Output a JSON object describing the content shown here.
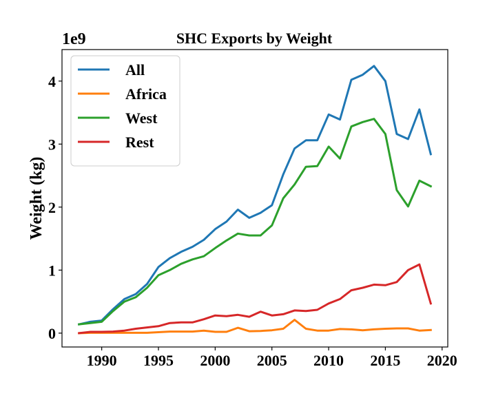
{
  "chart_data": {
    "type": "line",
    "title": "SHC Exports by Weight",
    "xlabel": "",
    "ylabel": "Weight (kg)",
    "y_offset_label": "1e9",
    "xlim": [
      1986.5,
      2020.5
    ],
    "ylim": [
      -0.22,
      4.5
    ],
    "xticks": [
      1990,
      1995,
      2000,
      2005,
      2010,
      2015,
      2020
    ],
    "yticks": [
      0,
      1,
      2,
      3,
      4
    ],
    "grid": false,
    "legend_position": "upper-left",
    "x": [
      1988,
      1989,
      1990,
      1991,
      1992,
      1993,
      1994,
      1995,
      1996,
      1997,
      1998,
      1999,
      2000,
      2001,
      2002,
      2003,
      2004,
      2005,
      2006,
      2007,
      2008,
      2009,
      2010,
      2011,
      2012,
      2013,
      2014,
      2015,
      2016,
      2017,
      2018,
      2019
    ],
    "series": [
      {
        "name": "All",
        "color": "#1f77b4",
        "values": [
          0.14,
          0.18,
          0.2,
          0.38,
          0.54,
          0.62,
          0.78,
          1.05,
          1.19,
          1.29,
          1.37,
          1.48,
          1.65,
          1.77,
          1.96,
          1.83,
          1.91,
          2.03,
          2.52,
          2.93,
          3.06,
          3.06,
          3.47,
          3.39,
          4.02,
          4.1,
          4.24,
          4.0,
          3.16,
          3.08,
          3.55,
          2.84
        ]
      },
      {
        "name": "Africa",
        "color": "#ff7f0e",
        "values": [
          0.0,
          0.005,
          0.005,
          0.005,
          0.005,
          0.005,
          0.005,
          0.015,
          0.025,
          0.025,
          0.025,
          0.04,
          0.02,
          0.02,
          0.085,
          0.03,
          0.035,
          0.045,
          0.07,
          0.21,
          0.07,
          0.04,
          0.04,
          0.065,
          0.06,
          0.045,
          0.06,
          0.07,
          0.075,
          0.075,
          0.04,
          0.05
        ]
      },
      {
        "name": "West",
        "color": "#2ca02c",
        "values": [
          0.14,
          0.16,
          0.18,
          0.35,
          0.5,
          0.57,
          0.72,
          0.92,
          1.0,
          1.1,
          1.17,
          1.22,
          1.35,
          1.47,
          1.58,
          1.55,
          1.55,
          1.71,
          2.14,
          2.36,
          2.64,
          2.65,
          2.96,
          2.77,
          3.28,
          3.35,
          3.4,
          3.16,
          2.27,
          2.01,
          2.42,
          2.33
        ]
      },
      {
        "name": "Rest",
        "color": "#d62728",
        "values": [
          0.0,
          0.02,
          0.02,
          0.025,
          0.04,
          0.07,
          0.09,
          0.11,
          0.16,
          0.17,
          0.17,
          0.22,
          0.28,
          0.27,
          0.29,
          0.26,
          0.34,
          0.28,
          0.3,
          0.36,
          0.35,
          0.37,
          0.47,
          0.54,
          0.68,
          0.72,
          0.77,
          0.76,
          0.81,
          1.0,
          1.09,
          0.47
        ]
      }
    ]
  }
}
